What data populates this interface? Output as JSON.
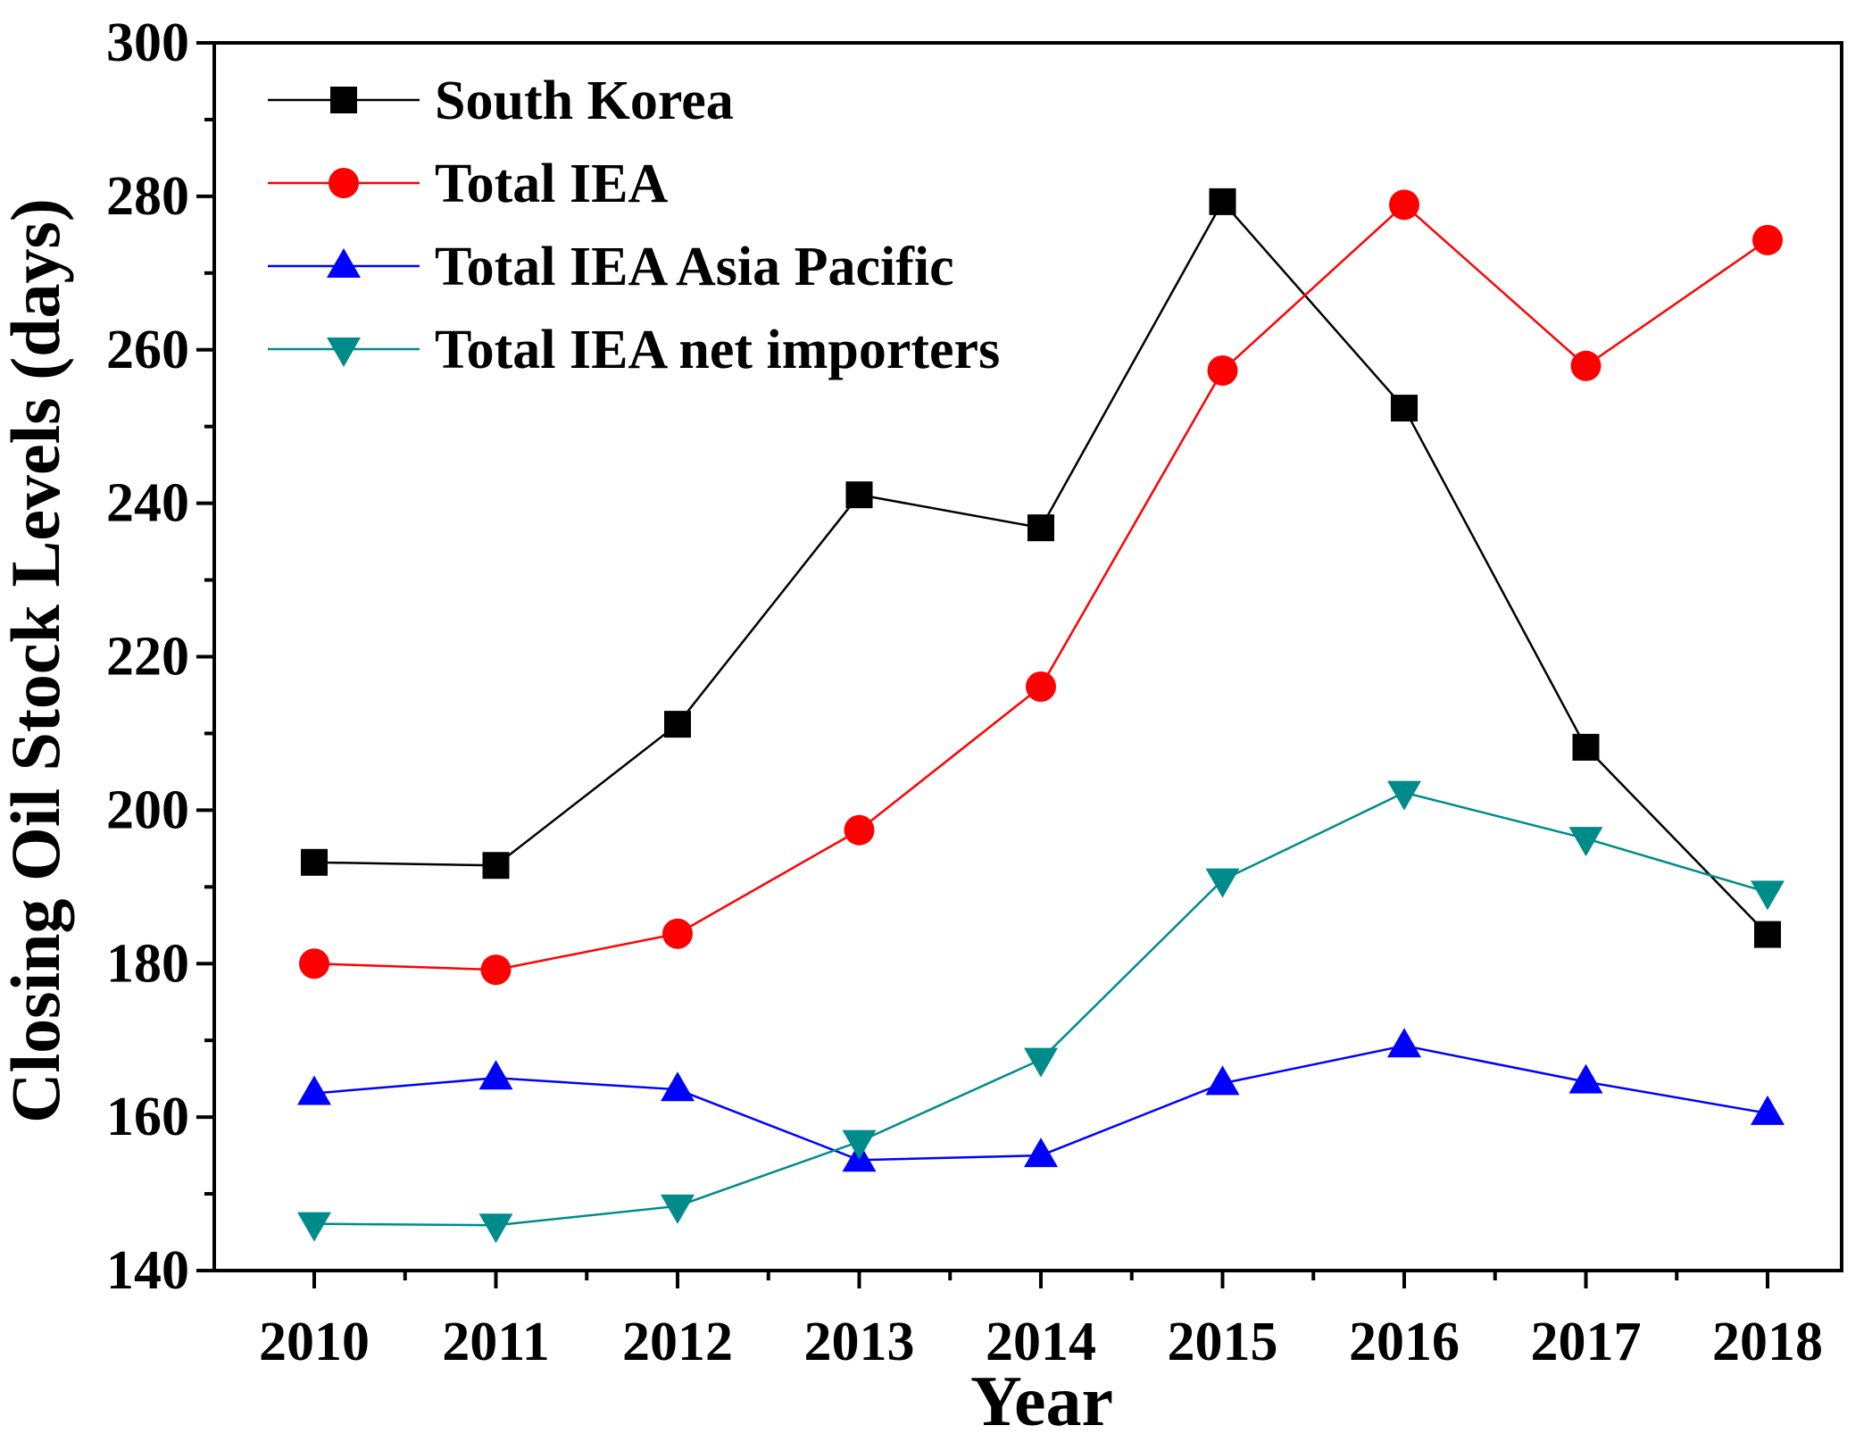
{
  "chart_data": {
    "type": "line",
    "title": "",
    "xlabel": "Year",
    "ylabel": "Closing Oil Stock Levels (days)",
    "categories": [
      "2010",
      "2011",
      "2012",
      "2013",
      "2014",
      "2015",
      "2016",
      "2017",
      "2018"
    ],
    "ylim": [
      140,
      300
    ],
    "yticks": [
      "140",
      "160",
      "180",
      "200",
      "220",
      "240",
      "260",
      "280",
      "300"
    ],
    "grid": false,
    "legend_position": "top-left",
    "series": [
      {
        "name": "South Korea",
        "color": "#000000",
        "marker": "square",
        "values": [
          193.2,
          192.8,
          211.2,
          241.1,
          236.8,
          279.3,
          252.4,
          208.2,
          183.8
        ]
      },
      {
        "name": "Total IEA",
        "color": "#ff0000",
        "marker": "circle",
        "values": [
          180.0,
          179.2,
          183.9,
          197.4,
          216.1,
          257.3,
          278.9,
          257.9,
          274.3
        ]
      },
      {
        "name": "Total IEA Asia Pacific",
        "color": "#0000ff",
        "marker": "triangle-up",
        "values": [
          163.1,
          165.1,
          163.6,
          154.4,
          155.0,
          164.4,
          169.3,
          164.6,
          160.5
        ]
      },
      {
        "name": "Total IEA net importers",
        "color": "#008b8b",
        "marker": "triangle-down",
        "values": [
          146.1,
          145.9,
          148.4,
          156.8,
          167.5,
          190.9,
          202.3,
          196.3,
          189.3
        ]
      }
    ]
  }
}
